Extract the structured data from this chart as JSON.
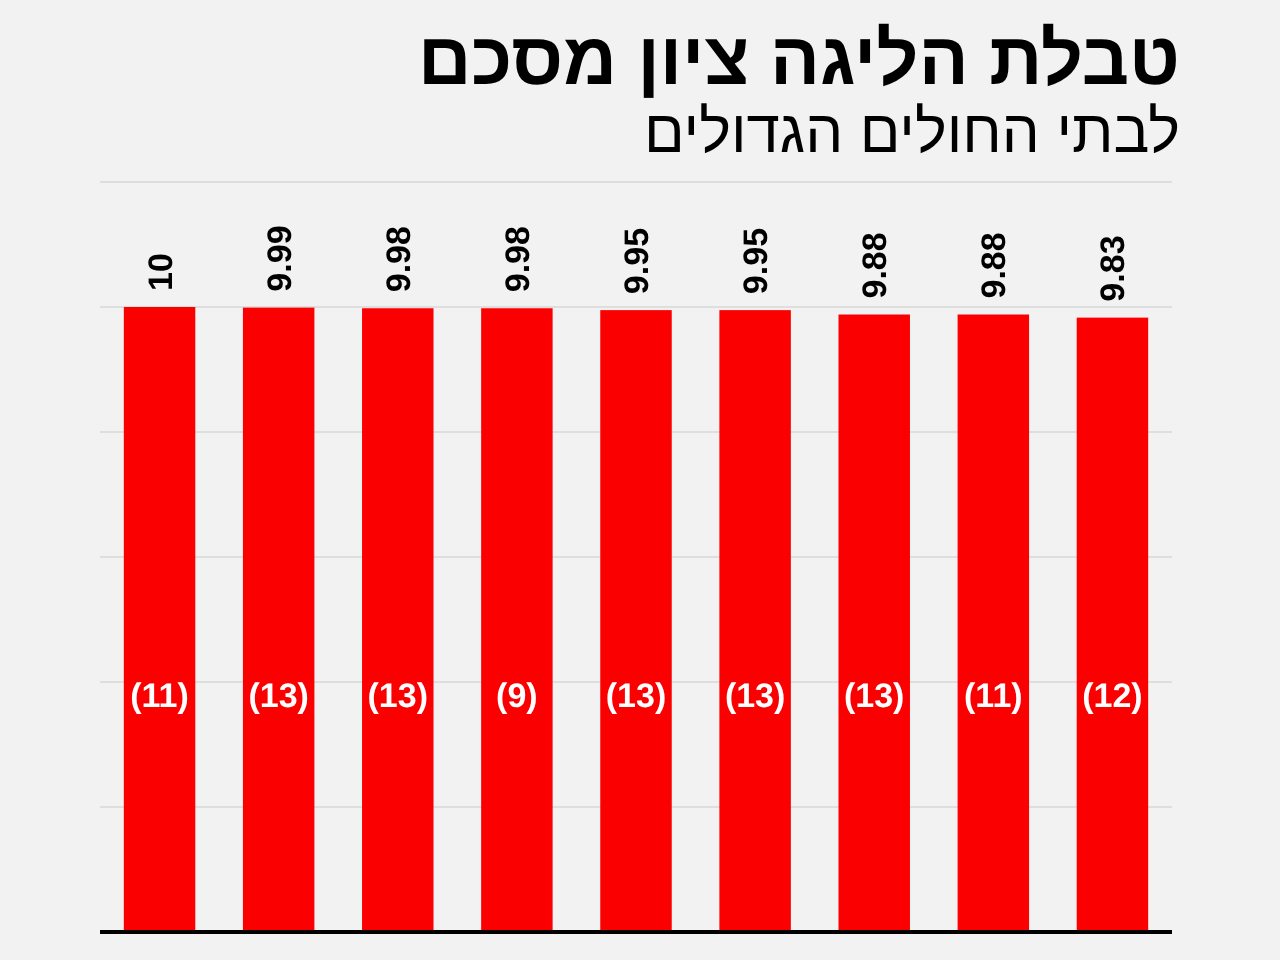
{
  "chart_data": {
    "type": "bar",
    "title": "טבלת הליגה ציון מסכם",
    "subtitle": "לבתי החולים הגדולים",
    "categories": [
      null,
      null,
      null,
      null,
      null,
      null,
      null,
      null,
      null
    ],
    "values": [
      10,
      9.99,
      9.98,
      9.98,
      9.95,
      9.95,
      9.88,
      9.88,
      9.83
    ],
    "color": "#fa0000",
    "data_labels": true,
    "annotations": [
      "(11)",
      "(13)",
      "(13)",
      "(9)",
      "(13)",
      "(13)",
      "(13)",
      "(11)",
      "(12)"
    ],
    "tick_labels": false,
    "grid": "y"
  }
}
